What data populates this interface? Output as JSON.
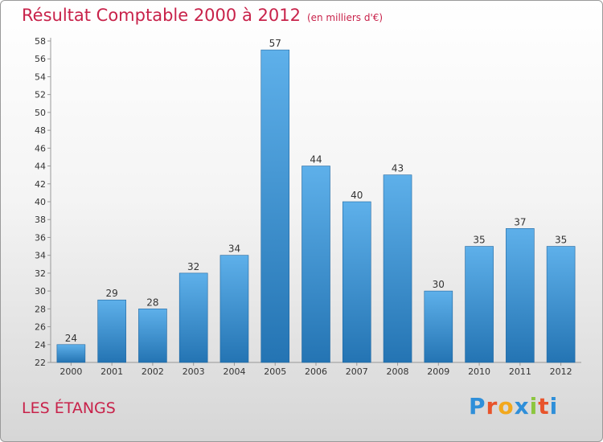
{
  "title": "Résultat Comptable 2000 à 2012",
  "subtitle": "(en milliers d'€)",
  "commune": "LES ÉTANGS",
  "logo": {
    "letters": [
      "P",
      "r",
      "o",
      "x",
      "i",
      "t",
      "i"
    ],
    "colors": [
      "#2f8fd9",
      "#e8542b",
      "#f2a81d",
      "#2f8fd9",
      "#8cc63f",
      "#e8542b",
      "#2f8fd9"
    ]
  },
  "chart_data": {
    "type": "bar",
    "title": "Résultat Comptable 2000 à 2012",
    "subtitle": "(en milliers d'€)",
    "xlabel": "",
    "ylabel": "",
    "categories": [
      "2000",
      "2001",
      "2002",
      "2003",
      "2004",
      "2005",
      "2006",
      "2007",
      "2008",
      "2009",
      "2010",
      "2011",
      "2012"
    ],
    "values": [
      24,
      29,
      28,
      32,
      34,
      57,
      44,
      40,
      43,
      30,
      35,
      37,
      35
    ],
    "ylim": [
      22,
      58
    ],
    "yticks": [
      22,
      24,
      26,
      28,
      30,
      32,
      34,
      36,
      38,
      40,
      42,
      44,
      46,
      48,
      50,
      52,
      54,
      56,
      58
    ],
    "grid": false,
    "colors": {
      "bar_top": "#5eb0ea",
      "bar_bottom": "#2474b3",
      "axis": "#999999",
      "text": "#333333"
    }
  }
}
